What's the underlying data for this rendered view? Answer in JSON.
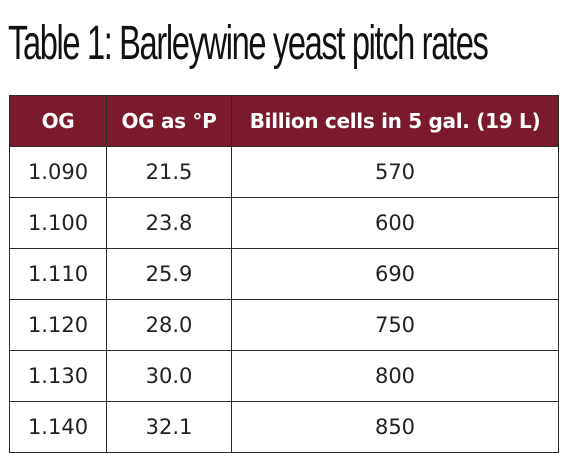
{
  "title": "Table 1:  Barleywine yeast pitch rates",
  "header": {
    "col1": "OG",
    "col2": "OG as °P",
    "col3": "Billion cells in 5 gal. (19 L)"
  },
  "rows": [
    {
      "og": "1.090",
      "plato": "21.5",
      "cells": "570"
    },
    {
      "og": "1.100",
      "plato": "23.8",
      "cells": "600"
    },
    {
      "og": "1.110",
      "plato": "25.9",
      "cells": "690"
    },
    {
      "og": "1.120",
      "plato": "28.0",
      "cells": "750"
    },
    {
      "og": "1.130",
      "plato": "30.0",
      "cells": "800"
    },
    {
      "og": "1.140",
      "plato": "32.1",
      "cells": "850"
    }
  ],
  "colors": {
    "header_background": "#7a1a2c",
    "header_text": "#ffffff",
    "border": "#2a2a2a"
  }
}
